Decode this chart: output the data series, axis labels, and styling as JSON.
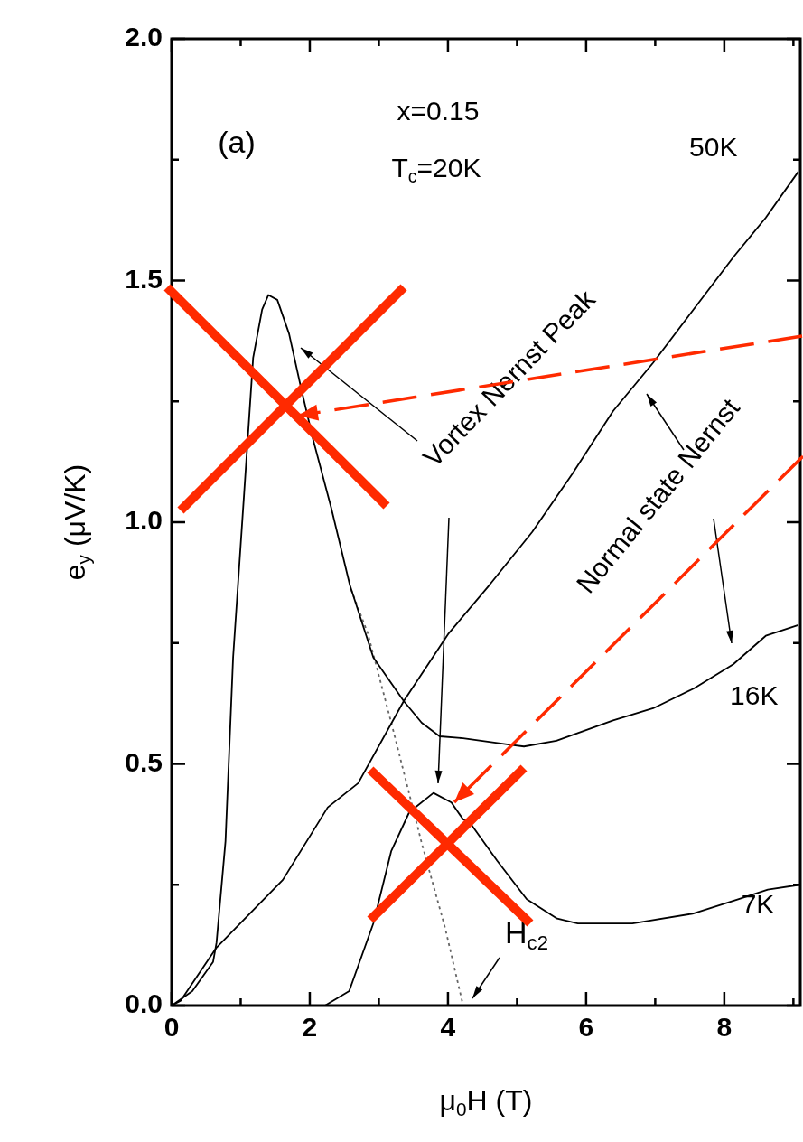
{
  "chart_data": {
    "type": "line",
    "xlabel": "μ$_{0}$H (T)",
    "ylabel": "e$_{y}$ (μV/K)",
    "xlim": [
      0,
      9.1
    ],
    "xticks": [
      0,
      {
        "value": 1,
        "label": null
      },
      2,
      {
        "value": 3,
        "label": null
      },
      4,
      {
        "value": 5,
        "label": null
      },
      6,
      {
        "value": 7,
        "label": null
      },
      8,
      {
        "value": 9,
        "label": null
      }
    ],
    "ylim": [
      0,
      2
    ],
    "yticks": [
      {
        "value": 0,
        "label": "0.0"
      },
      {
        "value": 0.25,
        "label": null
      },
      0.5,
      {
        "value": 0.75,
        "label": null
      },
      {
        "value": 1,
        "label": "1.0"
      },
      {
        "value": 1.25,
        "label": null
      },
      1.5,
      {
        "value": 1.75,
        "label": null
      },
      {
        "value": 2,
        "label": "2.0"
      }
    ],
    "grid": false,
    "legend": "right",
    "marker": "none",
    "line_style": "solid",
    "series": [
      {
        "name": "50K",
        "color": "#000000",
        "x": [
          0,
          0.13,
          0.65,
          1.61,
          2.26,
          2.7,
          3.36,
          4.01,
          4.6,
          5.22,
          5.8,
          6.39,
          6.97,
          7.5,
          8.14,
          8.6,
          9.07
        ],
        "values": [
          0,
          0.01,
          0.12,
          0.26,
          0.41,
          0.46,
          0.63,
          0.77,
          0.87,
          0.98,
          1.1,
          1.23,
          1.33,
          1.43,
          1.55,
          1.63,
          1.725
        ]
      },
      {
        "name": "16K",
        "color": "#000000",
        "x": [
          0,
          0.3,
          0.6,
          0.65,
          0.78,
          0.89,
          1.05,
          1.18,
          1.31,
          1.4,
          1.53,
          1.7,
          1.87,
          2.05,
          2.31,
          2.58,
          2.92,
          3.36,
          3.62,
          3.88,
          4.22,
          4.88,
          5.1,
          5.57,
          6.39,
          6.97,
          7.56,
          8.13,
          8.6,
          9.07
        ],
        "values": [
          0,
          0.03,
          0.09,
          0.13,
          0.34,
          0.72,
          1.06,
          1.34,
          1.44,
          1.47,
          1.46,
          1.39,
          1.28,
          1.17,
          1.03,
          0.87,
          0.72,
          0.63,
          0.585,
          0.557,
          0.553,
          0.54,
          0.536,
          0.548,
          0.59,
          0.615,
          0.656,
          0.706,
          0.765,
          0.787
        ]
      },
      {
        "name": "7K",
        "color": "#000000",
        "x": [
          2.22,
          2.57,
          2.92,
          3.18,
          3.44,
          3.79,
          4.05,
          4.22,
          4.31,
          4.71,
          5.14,
          5.58,
          5.88,
          6.67,
          7.54,
          8.2,
          8.63,
          9.1
        ],
        "values": [
          0,
          0.03,
          0.17,
          0.32,
          0.4,
          0.44,
          0.42,
          0.385,
          0.38,
          0.3,
          0.22,
          0.18,
          0.17,
          0.17,
          0.19,
          0.22,
          0.24,
          0.25
        ]
      },
      {
        "color": "#666666",
        "line_style": "dotted",
        "x": [
          2.6,
          2.84,
          3.18,
          3.62,
          3.96,
          4.22
        ],
        "values": [
          0.86,
          0.77,
          0.585,
          0.336,
          0.16,
          0
        ]
      }
    ],
    "annotations": [
      "(a)",
      "x=0.15",
      "T$_{c}$=20K",
      "Vortex Nernst Peak",
      "Normal state Nernst",
      "H$_{c2}$"
    ]
  }
}
